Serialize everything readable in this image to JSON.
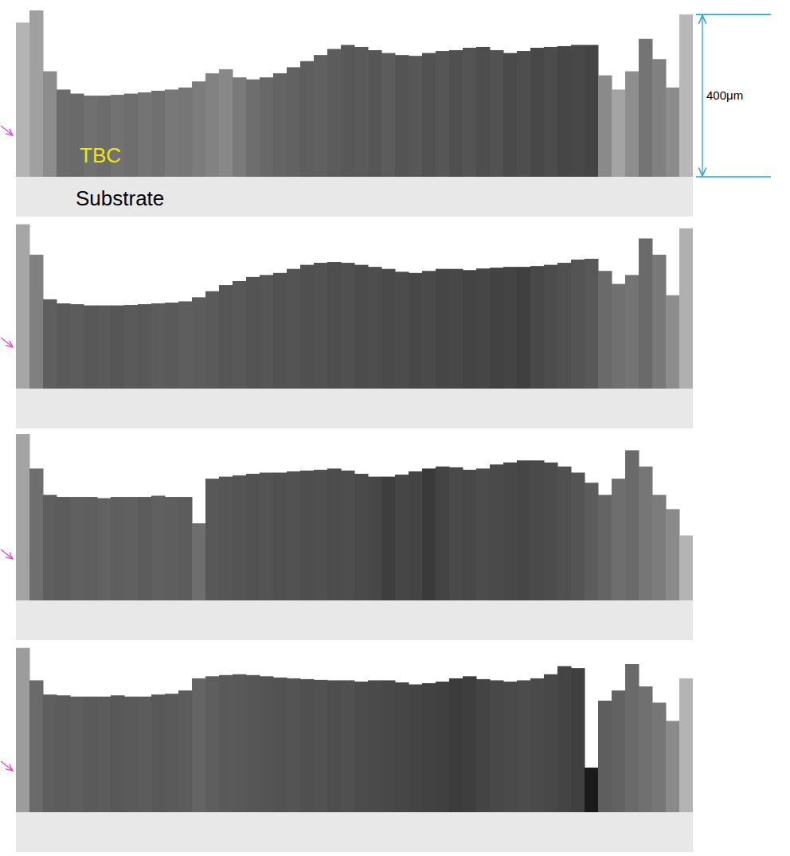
{
  "chart_data": [
    {
      "type": "bar",
      "tick_labels": false,
      "ylim": [
        0,
        420
      ],
      "annotations": [
        "TBC",
        "Substrate"
      ],
      "scale_bar": {
        "value": 400,
        "label": "400μm"
      },
      "values": [
        380,
        410,
        260,
        215,
        205,
        200,
        200,
        202,
        205,
        208,
        212,
        215,
        220,
        235,
        255,
        265,
        245,
        240,
        245,
        255,
        270,
        285,
        300,
        315,
        325,
        320,
        312,
        305,
        300,
        298,
        305,
        310,
        312,
        318,
        320,
        312,
        305,
        310,
        318,
        320,
        322,
        325,
        325,
        250,
        215,
        260,
        340,
        290,
        220,
        400
      ],
      "colors": [
        "#b4b4b4",
        "#a0a0a0",
        "#8c8c8c",
        "#6c6c6c",
        "#6a6a6a",
        "#707070",
        "#6c6c6c",
        "#727272",
        "#6e6e6e",
        "#747474",
        "#707070",
        "#787878",
        "#767676",
        "#7c7c7c",
        "#828282",
        "#888888",
        "#7a7a7a",
        "#6e6e6e",
        "#686868",
        "#646464",
        "#626262",
        "#5e5e5e",
        "#606060",
        "#5c5c5c",
        "#585858",
        "#5a5a5a",
        "#565656",
        "#5c5c5c",
        "#545454",
        "#585858",
        "#525252",
        "#565656",
        "#505050",
        "#545454",
        "#4e4e4e",
        "#525252",
        "#4a4a4a",
        "#4e4e4e",
        "#484848",
        "#4c4c4c",
        "#464646",
        "#484848",
        "#444444",
        "#8a8a8a",
        "#a4a4a4",
        "#8e8e8e",
        "#747474",
        "#808080",
        "#8c8c8c",
        "#b8b8b8"
      ]
    },
    {
      "type": "bar",
      "tick_labels": false,
      "ylim": [
        0,
        420
      ],
      "values": [
        405,
        330,
        220,
        210,
        208,
        205,
        205,
        205,
        206,
        208,
        210,
        212,
        215,
        225,
        240,
        255,
        265,
        275,
        280,
        285,
        295,
        305,
        310,
        312,
        310,
        305,
        300,
        295,
        288,
        285,
        290,
        295,
        295,
        292,
        296,
        298,
        300,
        300,
        302,
        305,
        310,
        318,
        320,
        290,
        258,
        280,
        370,
        330,
        230,
        395
      ],
      "colors": [
        "#a6a6a6",
        "#808080",
        "#5e5e5e",
        "#5a5a5a",
        "#5c5c5c",
        "#585858",
        "#5a5a5a",
        "#565656",
        "#5a5a5a",
        "#585858",
        "#5c5c5c",
        "#5a5a5a",
        "#5e5e5e",
        "#5c5c5c",
        "#5a5a5a",
        "#565656",
        "#585858",
        "#545454",
        "#565656",
        "#525252",
        "#545454",
        "#505050",
        "#525252",
        "#4e4e4e",
        "#505050",
        "#4c4c4c",
        "#4e4e4e",
        "#4a4a4a",
        "#4c4c4c",
        "#484848",
        "#4a4a4a",
        "#464646",
        "#484848",
        "#444444",
        "#464646",
        "#424242",
        "#444444",
        "#404040",
        "#484848",
        "#4c4c4c",
        "#505050",
        "#545454",
        "#585858",
        "#6a6a6a",
        "#707070",
        "#747474",
        "#6a6a6a",
        "#787878",
        "#8c8c8c",
        "#b0b0b0"
      ]
    },
    {
      "type": "bar",
      "tick_labels": false,
      "ylim": [
        0,
        420
      ],
      "values": [
        410,
        325,
        260,
        255,
        255,
        255,
        252,
        255,
        255,
        255,
        258,
        255,
        255,
        190,
        300,
        305,
        308,
        312,
        315,
        315,
        318,
        320,
        322,
        325,
        320,
        312,
        305,
        305,
        310,
        318,
        325,
        330,
        328,
        322,
        325,
        335,
        340,
        345,
        345,
        340,
        330,
        315,
        290,
        260,
        300,
        370,
        330,
        260,
        225,
        160
      ],
      "colors": [
        "#a4a4a4",
        "#6e6e6e",
        "#5e5e5e",
        "#5c5c5c",
        "#606060",
        "#5e5e5e",
        "#626262",
        "#5e5e5e",
        "#606060",
        "#5c5c5c",
        "#606060",
        "#5e5e5e",
        "#5c5c5c",
        "#6e6e6e",
        "#585858",
        "#565656",
        "#545454",
        "#525252",
        "#545454",
        "#505050",
        "#525252",
        "#4e4e4e",
        "#505050",
        "#4c4c4c",
        "#4e4e4e",
        "#4a4a4a",
        "#484848",
        "#3e3e3e",
        "#464646",
        "#444444",
        "#3a3a3a",
        "#444444",
        "#4a4a4a",
        "#484848",
        "#4c4c4c",
        "#4a4a4a",
        "#484848",
        "#464646",
        "#4a4a4a",
        "#4c4c4c",
        "#505050",
        "#545454",
        "#5c5c5c",
        "#646464",
        "#6e6e6e",
        "#6a6a6a",
        "#767676",
        "#7c7c7c",
        "#8a8a8a",
        "#b4b4b4"
      ]
    },
    {
      "type": "bar",
      "tick_labels": false,
      "ylim": [
        0,
        420
      ],
      "values": [
        405,
        325,
        290,
        288,
        285,
        285,
        285,
        288,
        285,
        285,
        290,
        292,
        300,
        330,
        335,
        338,
        340,
        338,
        335,
        332,
        330,
        328,
        326,
        325,
        325,
        322,
        325,
        325,
        320,
        315,
        318,
        322,
        330,
        335,
        328,
        325,
        322,
        325,
        330,
        340,
        360,
        355,
        110,
        275,
        300,
        365,
        310,
        270,
        225,
        330
      ],
      "colors": [
        "#9c9c9c",
        "#6a6a6a",
        "#5e5e5e",
        "#5c5c5c",
        "#5e5e5e",
        "#5a5a5a",
        "#5c5c5c",
        "#585858",
        "#5a5a5a",
        "#5c5c5c",
        "#585858",
        "#5a5a5a",
        "#5c5c5c",
        "#646464",
        "#5e5e5e",
        "#5a5a5a",
        "#585858",
        "#565656",
        "#545454",
        "#525252",
        "#545454",
        "#505050",
        "#525252",
        "#4e4e4e",
        "#505050",
        "#4c4c4c",
        "#4a4a4a",
        "#484848",
        "#464646",
        "#444444",
        "#424242",
        "#404040",
        "#3c3c3c",
        "#3e3e3e",
        "#444444",
        "#484848",
        "#4a4a4a",
        "#4c4c4c",
        "#4a4a4a",
        "#484848",
        "#444444",
        "#404040",
        "#1a1a1a",
        "#5e5e5e",
        "#626262",
        "#6a6a6a",
        "#707070",
        "#767676",
        "#8a8a8a",
        "#b4b4b4"
      ]
    }
  ]
}
